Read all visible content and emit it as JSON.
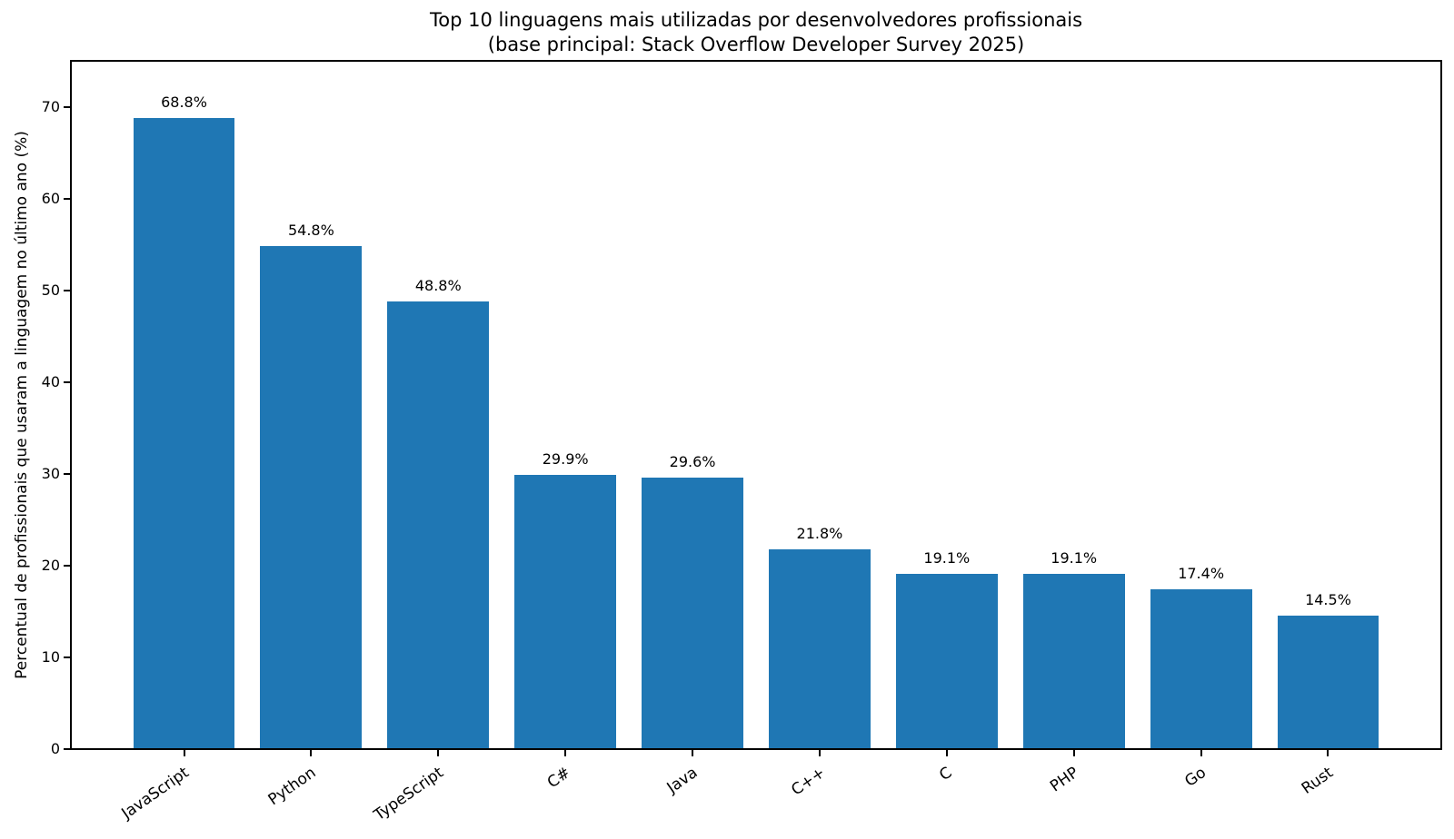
{
  "chart_data": {
    "type": "bar",
    "title_line1": "Top 10 linguagens mais utilizadas por desenvolvedores profissionais",
    "title_line2": "(base principal: Stack Overflow Developer Survey 2025)",
    "ylabel": "Percentual de profissionais que usaram a linguagem no último ano (%)",
    "xlabel": "",
    "categories": [
      "JavaScript",
      "Python",
      "TypeScript",
      "C#",
      "Java",
      "C++",
      "C",
      "PHP",
      "Go",
      "Rust"
    ],
    "values": [
      68.8,
      54.8,
      48.8,
      29.9,
      29.6,
      21.8,
      19.1,
      19.1,
      17.4,
      14.5
    ],
    "value_labels": [
      "68.8%",
      "54.8%",
      "48.8%",
      "29.9%",
      "29.6%",
      "21.8%",
      "19.1%",
      "19.1%",
      "17.4%",
      "14.5%"
    ],
    "yticks": [
      0,
      10,
      20,
      30,
      40,
      50,
      60,
      70
    ],
    "ylim": [
      0,
      75
    ],
    "bar_color": "#1f77b4",
    "axis_color": "#000000",
    "grid": false,
    "legend": null,
    "xtick_rotation_deg": 35
  }
}
